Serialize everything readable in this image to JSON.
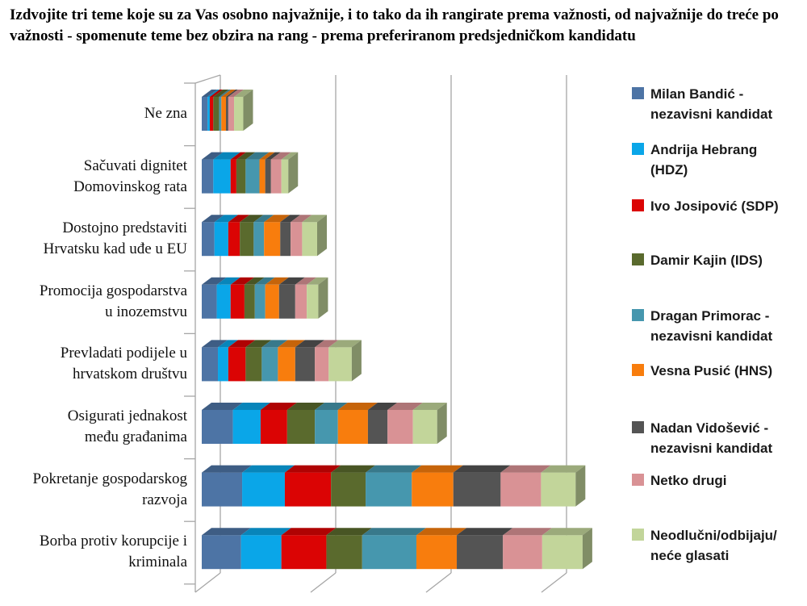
{
  "title": "Izdvojite tri teme koje su za Vas osobno najvažnije, i to tako da ih rangirate prema važnosti, od najvažnije do treće po važnosti - spomenute teme bez obzira na rang - prema preferiranom predsjedničkom kandidatu",
  "chart_data": {
    "type": "bar",
    "orientation": "horizontal",
    "stacked": true,
    "effect_3d": true,
    "grid": true,
    "legend_position": "right",
    "x_axis": {
      "min": 0,
      "max": 34,
      "gridline_interval": 10,
      "tick_labels_visible": false
    },
    "categories": [
      "Ne zna",
      "Sačuvati dignitet\nDomovinskog rata",
      "Dostojno predstaviti\nHrvatsku kad uđe u EU",
      "Promocija gospodarstva\nu inozemstvu",
      "Prevladati podijele u\nhrvatskom društvu",
      "Osigurati jednakost\nmeđu građanima",
      "Pokretanje gospodarskog\nrazvoja",
      "Borba protiv korupcije i\nkriminala"
    ],
    "series": [
      {
        "label": "Milan Bandić -\nnezavisni kandidat",
        "color": "#4D74A5",
        "values": [
          0.5,
          1.0,
          1.1,
          1.3,
          1.4,
          2.7,
          3.5,
          3.4
        ]
      },
      {
        "label": "Andrija Hebrang\n(HDZ)",
        "color": "#0AA6E8",
        "values": [
          0.2,
          1.5,
          1.2,
          1.2,
          0.9,
          2.4,
          3.7,
          3.5
        ]
      },
      {
        "label": "Ivo Josipović (SDP)",
        "color": "#DB0404",
        "values": [
          0.3,
          0.5,
          1.0,
          1.2,
          1.5,
          2.3,
          4.0,
          3.9
        ]
      },
      {
        "label": "Damir Kajin (IDS)",
        "color": "#5A6A2D",
        "values": [
          0.5,
          0.8,
          1.2,
          0.9,
          1.4,
          2.4,
          3.0,
          3.1
        ]
      },
      {
        "label": "Dragan Primorac -\nnezavisni kandidat",
        "color": "#4697AE",
        "values": [
          0.2,
          1.2,
          0.9,
          0.9,
          1.4,
          2.0,
          4.0,
          4.7
        ]
      },
      {
        "label": "Vesna Pusić (HNS)",
        "color": "#F87D0D",
        "values": [
          0.4,
          0.5,
          1.4,
          1.2,
          1.5,
          2.6,
          3.6,
          3.5
        ]
      },
      {
        "label": "Nadan Vidošević -\nnezavisni kandidat",
        "color": "#545454",
        "values": [
          0.2,
          0.5,
          0.9,
          1.4,
          1.7,
          1.7,
          4.1,
          4.0
        ]
      },
      {
        "label": "Netko drugi",
        "color": "#D99295",
        "values": [
          0.5,
          0.9,
          1.0,
          1.0,
          1.2,
          2.2,
          3.5,
          3.4
        ]
      },
      {
        "label": "Neodlučni/odbijaju/\nneće glasati",
        "color": "#C2D59A",
        "values": [
          0.8,
          0.6,
          1.3,
          1.0,
          2.0,
          2.1,
          3.0,
          3.5
        ]
      }
    ]
  }
}
